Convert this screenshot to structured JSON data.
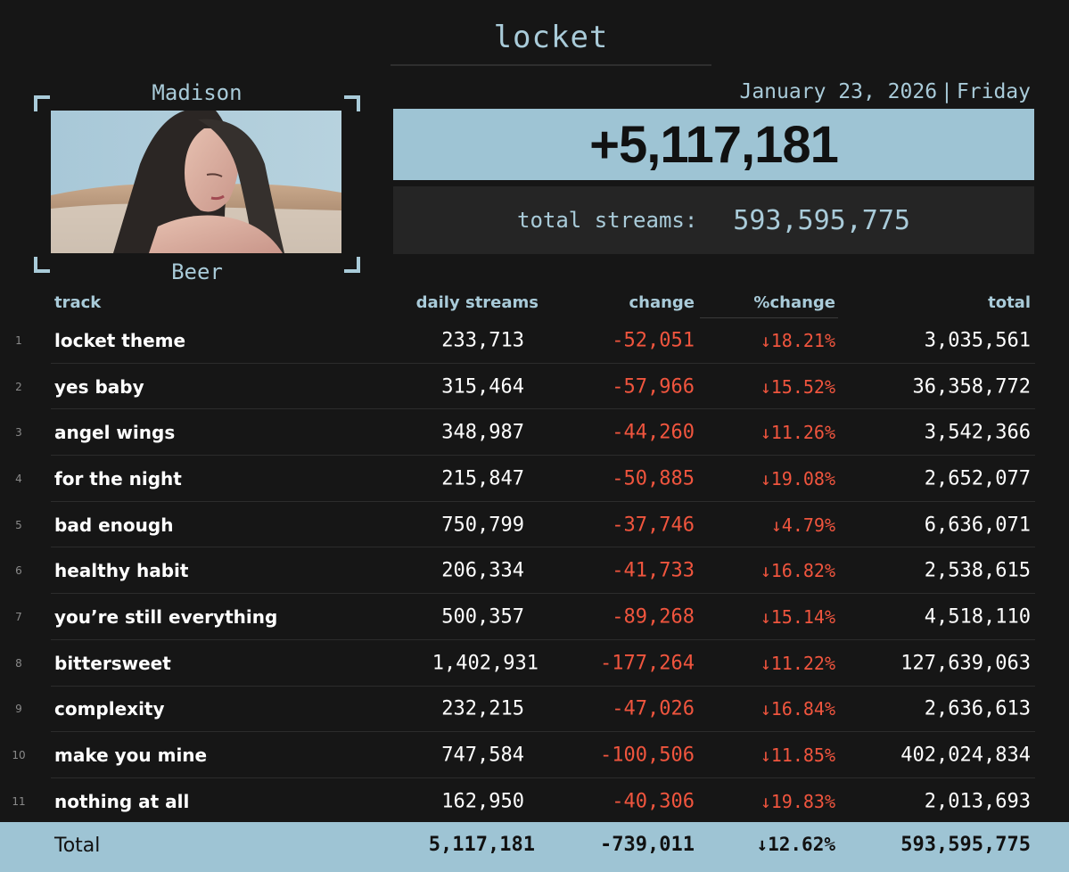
{
  "album": {
    "title": "locket"
  },
  "artist": {
    "first_name": "Madison",
    "last_name": "Beer"
  },
  "date": {
    "day": "January 23, 2026",
    "weekday": "Friday"
  },
  "summary": {
    "daily_total": "+5,117,181",
    "total_label": "total streams:",
    "total_value": "593,595,775"
  },
  "columns": {
    "track": "track",
    "daily": "daily streams",
    "change": "change",
    "pct": "%change",
    "total": "total"
  },
  "tracks": [
    {
      "rank": "1",
      "name": "locket theme",
      "daily": "233,713",
      "change": "-52,051",
      "pct": "↓18.21%",
      "total": "3,035,561"
    },
    {
      "rank": "2",
      "name": "yes baby",
      "daily": "315,464",
      "change": "-57,966",
      "pct": "↓15.52%",
      "total": "36,358,772"
    },
    {
      "rank": "3",
      "name": "angel wings",
      "daily": "348,987",
      "change": "-44,260",
      "pct": "↓11.26%",
      "total": "3,542,366"
    },
    {
      "rank": "4",
      "name": "for the night",
      "daily": "215,847",
      "change": "-50,885",
      "pct": "↓19.08%",
      "total": "2,652,077"
    },
    {
      "rank": "5",
      "name": "bad enough",
      "daily": "750,799",
      "change": "-37,746",
      "pct": "↓4.79%",
      "total": "6,636,071"
    },
    {
      "rank": "6",
      "name": "healthy habit",
      "daily": "206,334",
      "change": "-41,733",
      "pct": "↓16.82%",
      "total": "2,538,615"
    },
    {
      "rank": "7",
      "name": "you’re still everything",
      "daily": "500,357",
      "change": "-89,268",
      "pct": "↓15.14%",
      "total": "4,518,110"
    },
    {
      "rank": "8",
      "name": "bittersweet",
      "daily": "1,402,931",
      "change": "-177,264",
      "pct": "↓11.22%",
      "total": "127,639,063"
    },
    {
      "rank": "9",
      "name": "complexity",
      "daily": "232,215",
      "change": "-47,026",
      "pct": "↓16.84%",
      "total": "2,636,613"
    },
    {
      "rank": "10",
      "name": "make you mine",
      "daily": "747,584",
      "change": "-100,506",
      "pct": "↓11.85%",
      "total": "402,024,834"
    },
    {
      "rank": "11",
      "name": "nothing at all",
      "daily": "162,950",
      "change": "-40,306",
      "pct": "↓19.83%",
      "total": "2,013,693"
    }
  ],
  "totals": {
    "label": "Total",
    "daily": "5,117,181",
    "change": "-739,011",
    "pct": "↓12.62%",
    "total": "593,595,775"
  },
  "colors": {
    "accent": "#9ec4d4",
    "accent_text": "#a9cbd9",
    "negative": "#f0553e",
    "background": "#161616"
  }
}
